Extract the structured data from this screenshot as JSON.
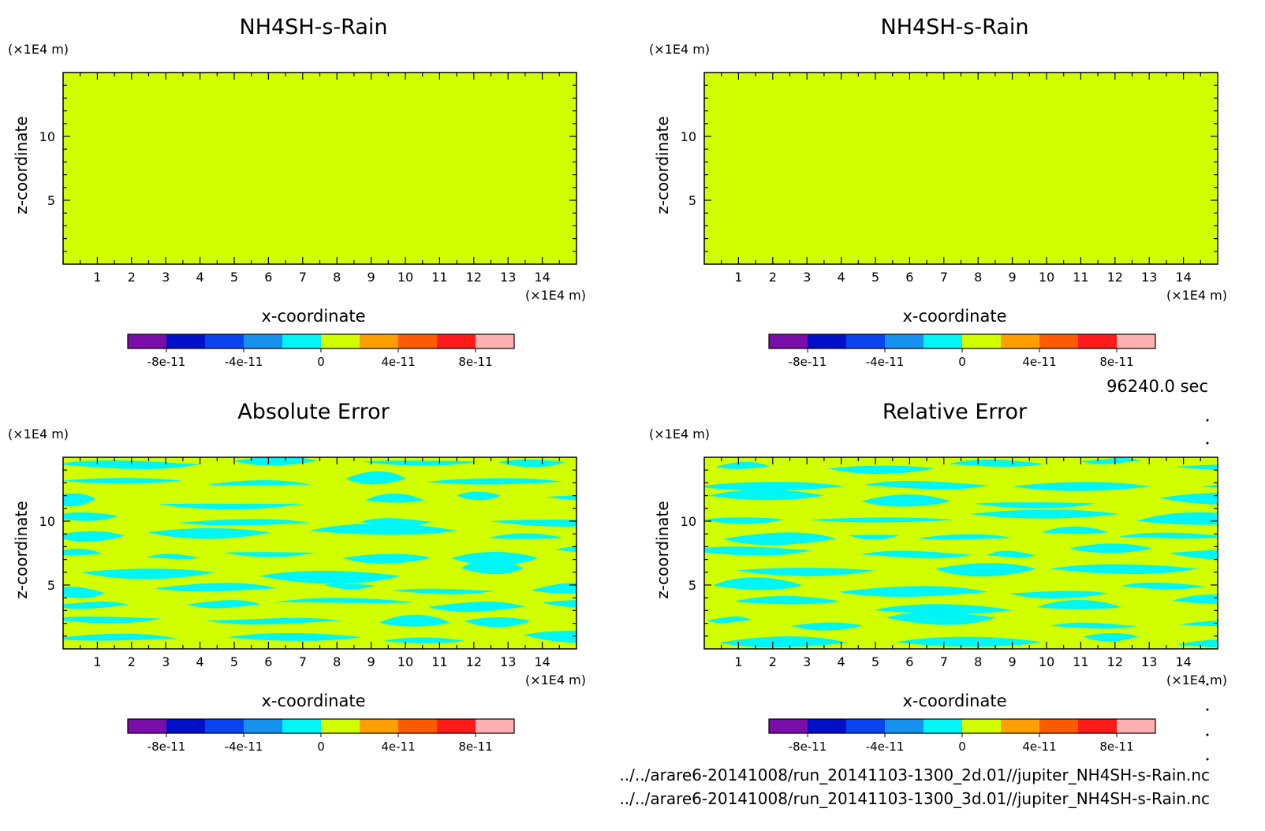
{
  "figure": {
    "time_label": "96240.0 sec",
    "file_paths": [
      "../../arare6-20141008/run_20141103-1300_2d.01//jupiter_NH4SH-s-Rain.nc",
      "../../arare6-20141008/run_20141103-1300_3d.01//jupiter_NH4SH-s-Rain.nc"
    ],
    "colorbar": {
      "colors": [
        "#7b0daa",
        "#0010c8",
        "#0a44f0",
        "#1592ef",
        "#00f5f5",
        "#d2ff00",
        "#ff9f00",
        "#ff5a00",
        "#ff1a1a",
        "#ffb0b0"
      ],
      "tick_labels": [
        "-8e-11",
        "-4e-11",
        "0",
        "4e-11",
        "8e-11"
      ],
      "tick_positions": [
        1,
        3,
        5,
        7,
        9
      ]
    }
  },
  "chart_data": [
    {
      "type": "heatmap",
      "title": "NH4SH-s-Rain",
      "xlabel": "x-coordinate",
      "ylabel": "z-coordinate",
      "x_unit": "(×1E4 m)",
      "y_unit": "(×1E4 m)",
      "xlim": [
        0,
        15
      ],
      "ylim": [
        0,
        15
      ],
      "x_ticks": [
        1,
        2,
        3,
        4,
        5,
        6,
        7,
        8,
        9,
        10,
        11,
        12,
        13,
        14
      ],
      "y_ticks": [
        5,
        10
      ],
      "field": "uniform",
      "value": 0
    },
    {
      "type": "heatmap",
      "title": "NH4SH-s-Rain",
      "xlabel": "x-coordinate",
      "ylabel": "z-coordinate",
      "x_unit": "(×1E4 m)",
      "y_unit": "(×1E4 m)",
      "xlim": [
        0,
        15
      ],
      "ylim": [
        0,
        15
      ],
      "x_ticks": [
        1,
        2,
        3,
        4,
        5,
        6,
        7,
        8,
        9,
        10,
        11,
        12,
        13,
        14
      ],
      "y_ticks": [
        5,
        10
      ],
      "field": "uniform",
      "value": 0
    },
    {
      "type": "heatmap",
      "title": "Absolute Error",
      "xlabel": "x-coordinate",
      "ylabel": "z-coordinate",
      "x_unit": "(×1E4 m)",
      "y_unit": "(×1E4 m)",
      "xlim": [
        0,
        15
      ],
      "ylim": [
        0,
        15
      ],
      "x_ticks": [
        1,
        2,
        3,
        4,
        5,
        6,
        7,
        8,
        9,
        10,
        11,
        12,
        13,
        14
      ],
      "y_ticks": [
        5,
        10
      ],
      "field": "banded",
      "values_present": [
        -1e-11,
        0
      ],
      "pattern_seed": 3
    },
    {
      "type": "heatmap",
      "title": "Relative Error",
      "xlabel": "x-coordinate",
      "ylabel": "z-coordinate",
      "x_unit": "(×1E4 m)",
      "y_unit": "(×1E4 m)",
      "xlim": [
        0,
        15
      ],
      "ylim": [
        0,
        15
      ],
      "x_ticks": [
        1,
        2,
        3,
        4,
        5,
        6,
        7,
        8,
        9,
        10,
        11,
        12,
        13,
        14
      ],
      "y_ticks": [
        5,
        10
      ],
      "field": "banded",
      "values_present": [
        -1e-11,
        0
      ],
      "pattern_seed": 7
    }
  ]
}
